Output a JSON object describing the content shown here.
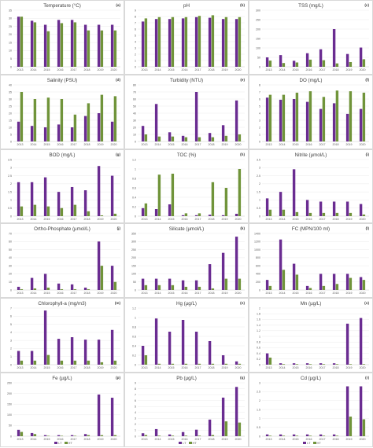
{
  "colors": {
    "LT": "#6a2c91",
    "HT": "#70943a",
    "grid": "#e6e6e6",
    "axis": "#bfbfbf",
    "tick": "#595959"
  },
  "chart_data": [
    {
      "type": "bar",
      "title": "Temperature (°C)",
      "letter": "(a)",
      "categories": [
        "2013",
        "2014",
        "2015",
        "2016",
        "2017",
        "2018",
        "2019",
        "2020"
      ],
      "yticks": [
        "0",
        "5",
        "10",
        "15",
        "20",
        "25",
        "30",
        "35"
      ],
      "ylim": [
        0,
        35
      ],
      "legend": false,
      "series": [
        {
          "name": "LT",
          "values": [
            31,
            28.5,
            26,
            29,
            29,
            26,
            26,
            26
          ]
        },
        {
          "name": "HT",
          "values": [
            31,
            27.5,
            22,
            27,
            27.5,
            22.5,
            22.5,
            22.5
          ]
        }
      ]
    },
    {
      "type": "bar",
      "title": "pH",
      "letter": "(b)",
      "categories": [
        "2013",
        "2014",
        "2015",
        "2016",
        "2017",
        "2018",
        "2019",
        "2020"
      ],
      "yticks": [
        "0",
        "1",
        "2",
        "3",
        "4",
        "5",
        "6",
        "7",
        "8",
        "9"
      ],
      "ylim": [
        0,
        9
      ],
      "legend": false,
      "series": [
        {
          "name": "LT",
          "values": [
            7.2,
            7.6,
            7.6,
            7.7,
            7.9,
            7.8,
            7.6,
            7.6
          ]
        },
        {
          "name": "HT",
          "values": [
            7.7,
            7.9,
            7.9,
            7.9,
            8.1,
            8.2,
            7.9,
            7.9
          ]
        }
      ]
    },
    {
      "type": "bar",
      "title": "TSS (mg/L)",
      "letter": "(c)",
      "categories": [
        "2013",
        "2014",
        "2015",
        "2016",
        "2017",
        "2018",
        "2019",
        "2020"
      ],
      "yticks": [
        "0",
        "50",
        "100",
        "150",
        "200",
        "250",
        "300"
      ],
      "ylim": [
        0,
        300
      ],
      "legend": false,
      "series": [
        {
          "name": "LT",
          "values": [
            50,
            62,
            32,
            72,
            93,
            200,
            68,
            102
          ]
        },
        {
          "name": "HT",
          "values": [
            33,
            20,
            23,
            38,
            35,
            18,
            25,
            40
          ]
        }
      ]
    },
    {
      "type": "bar",
      "title": "Salinity (PSU)",
      "letter": "(d)",
      "categories": [
        "2013",
        "2014",
        "2015",
        "2016",
        "2017",
        "2018",
        "2019",
        "2020"
      ],
      "yticks": [
        "0",
        "5",
        "10",
        "15",
        "20",
        "25",
        "30",
        "35",
        "40"
      ],
      "ylim": [
        0,
        40
      ],
      "legend": false,
      "series": [
        {
          "name": "LT",
          "values": [
            14,
            11,
            10,
            12,
            10,
            18,
            20,
            14
          ]
        },
        {
          "name": "HT",
          "values": [
            35,
            30,
            31,
            30,
            19,
            27,
            33,
            32
          ]
        }
      ]
    },
    {
      "type": "bar",
      "title": "Turbidity (NTU)",
      "letter": "(e)",
      "categories": [
        "2013",
        "2014",
        "2015",
        "2016",
        "2017",
        "2018",
        "2019",
        "2020"
      ],
      "yticks": [
        "0",
        "10",
        "20",
        "30",
        "40",
        "50",
        "60",
        "70",
        "80"
      ],
      "ylim": [
        0,
        80
      ],
      "legend": false,
      "series": [
        {
          "name": "LT",
          "values": [
            22,
            53,
            13,
            8,
            70,
            12,
            23,
            58
          ]
        },
        {
          "name": "HT",
          "values": [
            10,
            7,
            7,
            6,
            6,
            6,
            8,
            10
          ]
        }
      ]
    },
    {
      "type": "bar",
      "title": "DO (mg/L)",
      "letter": "(f)",
      "categories": [
        "2013",
        "2014",
        "2015",
        "2016",
        "2017",
        "2018",
        "2019",
        "2020"
      ],
      "yticks": [
        "0",
        "1",
        "2",
        "3",
        "4",
        "5",
        "6",
        "7",
        "8"
      ],
      "ylim": [
        0,
        8
      ],
      "legend": false,
      "series": [
        {
          "name": "LT",
          "values": [
            6.2,
            5.9,
            6,
            5.6,
            4.6,
            5.4,
            3.9,
            4.6
          ]
        },
        {
          "name": "HT",
          "values": [
            6.6,
            6.6,
            6.9,
            7.1,
            6.3,
            7.2,
            7.1,
            6.9
          ]
        }
      ]
    },
    {
      "type": "bar",
      "title": "BOD (mg/L)",
      "letter": "(g)",
      "categories": [
        "2013",
        "2014",
        "2015",
        "2016",
        "2017",
        "2018",
        "2019",
        "2020"
      ],
      "yticks": [
        "0",
        "0.5",
        "1",
        "1.5",
        "2",
        "2.5",
        "3",
        "3.5"
      ],
      "ylim": [
        0,
        3.5
      ],
      "legend": false,
      "series": [
        {
          "name": "LT",
          "values": [
            2.1,
            2.1,
            2.4,
            1.5,
            1.8,
            1.6,
            3.1,
            2.5
          ]
        },
        {
          "name": "HT",
          "values": [
            0.6,
            0.7,
            0.6,
            0.5,
            0.7,
            0.3,
            0.05,
            0.15
          ]
        }
      ]
    },
    {
      "type": "bar",
      "title": "TOC (%)",
      "letter": "(h)",
      "categories": [
        "2013",
        "2014",
        "2015",
        "2016",
        "2017",
        "2018",
        "2019",
        "2020"
      ],
      "yticks": [
        "0",
        "0.2",
        "0.4",
        "0.6",
        "0.8",
        "1",
        "1.2"
      ],
      "ylim": [
        0,
        1.2
      ],
      "legend": false,
      "series": [
        {
          "name": "LT",
          "values": [
            0.17,
            0.15,
            0.25,
            0.02,
            0.02,
            0.03,
            0.02,
            0.05
          ]
        },
        {
          "name": "HT",
          "values": [
            0.27,
            0.88,
            0.9,
            0.06,
            0.06,
            0.72,
            0.6,
            1.0
          ]
        }
      ]
    },
    {
      "type": "bar",
      "title": "Nitrite (µmol/L)",
      "letter": "(i)",
      "categories": [
        "2013",
        "2014",
        "2015",
        "2016",
        "2017",
        "2018",
        "2019",
        "2020"
      ],
      "yticks": [
        "0",
        "0.5",
        "1",
        "1.5",
        "2",
        "2.5",
        "3",
        "3.5"
      ],
      "ylim": [
        0,
        3.5
      ],
      "legend": false,
      "series": [
        {
          "name": "LT",
          "values": [
            1.1,
            1.5,
            2.9,
            1,
            0.9,
            0.9,
            0.9,
            0.75
          ]
        },
        {
          "name": "HT",
          "values": [
            0.4,
            0.4,
            0.25,
            0.2,
            0.2,
            0.2,
            0.2,
            0.1
          ]
        }
      ]
    },
    {
      "type": "bar",
      "title": "Ortho-Phosphate (µmol/L)",
      "letter": "(j)",
      "categories": [
        "2013",
        "2014",
        "2015",
        "2016",
        "2017",
        "2018",
        "2019",
        "2020"
      ],
      "yticks": [
        "0",
        "10",
        "20",
        "30",
        "40",
        "50",
        "60",
        "70"
      ],
      "ylim": [
        0,
        70
      ],
      "legend": false,
      "series": [
        {
          "name": "LT",
          "values": [
            4,
            15,
            20,
            8,
            7,
            3,
            60,
            30
          ]
        },
        {
          "name": "HT",
          "values": [
            1,
            2,
            3,
            1,
            1,
            1,
            30,
            10
          ]
        }
      ]
    },
    {
      "type": "bar",
      "title": "Silicate (µmol/L)",
      "letter": "(k)",
      "categories": [
        "2013",
        "2014",
        "2015",
        "2016",
        "2017",
        "2018",
        "2019",
        "2020"
      ],
      "yticks": [
        "0",
        "50",
        "100",
        "150",
        "200",
        "250",
        "300",
        "350"
      ],
      "ylim": [
        0,
        350
      ],
      "legend": false,
      "series": [
        {
          "name": "LT",
          "values": [
            70,
            70,
            70,
            60,
            60,
            160,
            230,
            330
          ]
        },
        {
          "name": "HT",
          "values": [
            30,
            30,
            30,
            20,
            20,
            10,
            70,
            70
          ]
        }
      ]
    },
    {
      "type": "bar",
      "title": "FC (MPN/100 ml)",
      "letter": "(l)",
      "categories": [
        "2013",
        "2014",
        "2015",
        "2016",
        "2017",
        "2018",
        "2019",
        "2020"
      ],
      "yticks": [
        "0",
        "200",
        "400",
        "600",
        "800",
        "1000",
        "1200",
        "1400"
      ],
      "ylim": [
        0,
        1400
      ],
      "legend": false,
      "series": [
        {
          "name": "LT",
          "values": [
            250,
            1250,
            650,
            100,
            400,
            400,
            400,
            320
          ]
        },
        {
          "name": "HT",
          "values": [
            100,
            500,
            380,
            50,
            100,
            150,
            300,
            250
          ]
        }
      ]
    },
    {
      "type": "bar",
      "title": "Chlorophyll-a (mg/m3)",
      "letter": "(m)",
      "categories": [
        "2013",
        "2014",
        "2015",
        "2016",
        "2017",
        "2018",
        "2019",
        "2020"
      ],
      "yticks": [
        "0",
        "1",
        "2",
        "3",
        "4",
        "5",
        "6",
        "7"
      ],
      "ylim": [
        0,
        7
      ],
      "legend": false,
      "series": [
        {
          "name": "LT",
          "values": [
            1.7,
            1.7,
            6.7,
            3.2,
            3.4,
            3.1,
            3.1,
            4.3
          ]
        },
        {
          "name": "HT",
          "values": [
            0.5,
            0.5,
            1.2,
            0.5,
            0.5,
            0.5,
            0.3,
            0.5
          ]
        }
      ]
    },
    {
      "type": "bar",
      "title": "Hg (µg/L)",
      "letter": "(n)",
      "categories": [
        "2013",
        "2014",
        "2015",
        "2016",
        "2017",
        "2018",
        "2019",
        "2020"
      ],
      "yticks": [
        "0",
        "0.2",
        "0.4",
        "0.6",
        "0.8",
        "1",
        "1.2"
      ],
      "ylim": [
        0,
        1.2
      ],
      "legend": false,
      "series": [
        {
          "name": "LT",
          "values": [
            0.4,
            0.98,
            0.7,
            0.95,
            0.7,
            0.5,
            0.2,
            0.07
          ]
        },
        {
          "name": "HT",
          "values": [
            0.2,
            0.02,
            0.02,
            0.02,
            0.02,
            0.02,
            0.02,
            0.02
          ]
        }
      ]
    },
    {
      "type": "bar",
      "title": "Mn (µg/L)",
      "letter": "(o)",
      "categories": [
        "2013",
        "2014",
        "2015",
        "2016",
        "2017",
        "2018",
        "2019",
        "2020"
      ],
      "yticks": [
        "0",
        "0.2",
        "0.4",
        "0.6",
        "0.8",
        "1",
        "1.2",
        "1.4",
        "1.6",
        "1.8",
        "2"
      ],
      "ylim": [
        0,
        2
      ],
      "legend": false,
      "series": [
        {
          "name": "LT",
          "values": [
            0.4,
            0.05,
            0.05,
            0.05,
            0.05,
            0.05,
            1.45,
            1.65
          ]
        },
        {
          "name": "HT",
          "values": [
            0.25,
            0.02,
            0.02,
            0.02,
            0.02,
            0.02,
            0.02,
            0.02
          ]
        }
      ]
    },
    {
      "type": "bar",
      "title": "Fe (µg/L)",
      "letter": "(p)",
      "categories": [
        "2013",
        "2014",
        "2015",
        "2016",
        "2017",
        "2018",
        "2019",
        "2020"
      ],
      "yticks": [
        "0",
        "50",
        "100",
        "150",
        "200",
        "250"
      ],
      "ylim": [
        0,
        250
      ],
      "legend": true,
      "series": [
        {
          "name": "LT",
          "values": [
            30,
            15,
            5,
            5,
            5,
            10,
            195,
            180
          ]
        },
        {
          "name": "HT",
          "values": [
            20,
            10,
            2,
            2,
            2,
            5,
            5,
            5
          ]
        }
      ]
    },
    {
      "type": "bar",
      "title": "Pb (µg/L)",
      "letter": "(q)",
      "categories": [
        "2013",
        "2014",
        "2015",
        "2016",
        "2017",
        "2018",
        "2019",
        "2020"
      ],
      "yticks": [
        "0",
        "1",
        "2",
        "3",
        "4",
        "5",
        "6",
        "7",
        "8",
        "9"
      ],
      "ylim": [
        0,
        9
      ],
      "legend": true,
      "series": [
        {
          "name": "LT",
          "values": [
            0.5,
            1.2,
            0.3,
            0.7,
            1.1,
            2.8,
            6.5,
            8.3
          ]
        },
        {
          "name": "HT",
          "values": [
            0.2,
            0.1,
            0.1,
            0.1,
            0.1,
            0.2,
            2.5,
            2.3
          ]
        }
      ]
    },
    {
      "type": "bar",
      "title": "Cd (µg/L)",
      "letter": "(r)",
      "categories": [
        "2013",
        "2014",
        "2015",
        "2016",
        "2017",
        "2018",
        "2019",
        "2020"
      ],
      "yticks": [
        "0",
        "0.5",
        "1",
        "1.5",
        "2",
        "2.5",
        "3"
      ],
      "ylim": [
        0,
        3
      ],
      "legend": true,
      "series": [
        {
          "name": "LT",
          "values": [
            0.1,
            0.1,
            0.1,
            0.1,
            0.1,
            0.1,
            2.8,
            2.8
          ]
        },
        {
          "name": "HT",
          "values": [
            0.03,
            0.03,
            0.03,
            0.03,
            0.03,
            0.03,
            1.1,
            0.95
          ]
        }
      ]
    }
  ]
}
